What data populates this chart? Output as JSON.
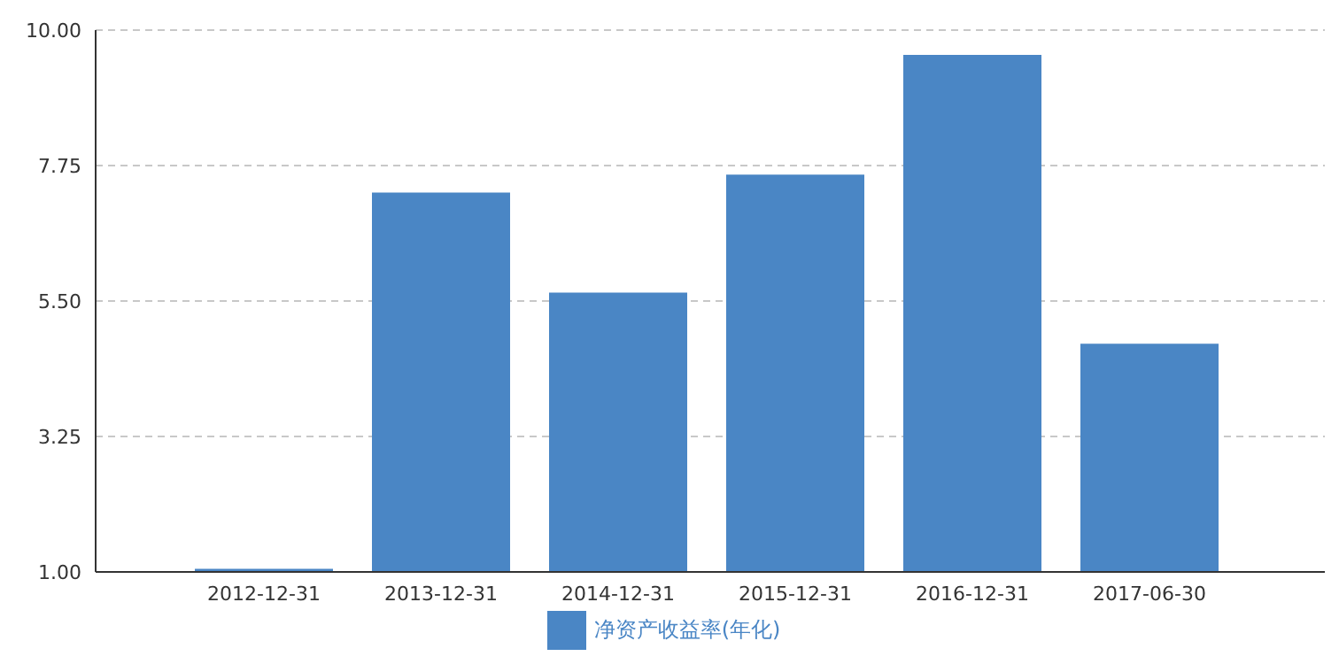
{
  "chart_data": {
    "type": "bar",
    "categories": [
      "2012-12-31",
      "2013-12-31",
      "2014-12-31",
      "2015-12-31",
      "2016-12-31",
      "2017-06-30"
    ],
    "series": [
      {
        "name": "净资产收益率(年化)",
        "color": "#4a86c5",
        "values": [
          1.05,
          7.3,
          5.64,
          7.6,
          9.59,
          4.79
        ]
      }
    ],
    "ylim": [
      1,
      10
    ],
    "yticks": [
      {
        "value": 1,
        "label": "1.00"
      },
      {
        "value": 3.25,
        "label": "3.25"
      },
      {
        "value": 5.5,
        "label": "5.50"
      },
      {
        "value": 7.75,
        "label": "7.75"
      },
      {
        "value": 10,
        "label": "10.00"
      }
    ],
    "grid": "y",
    "legend": "bottom"
  }
}
